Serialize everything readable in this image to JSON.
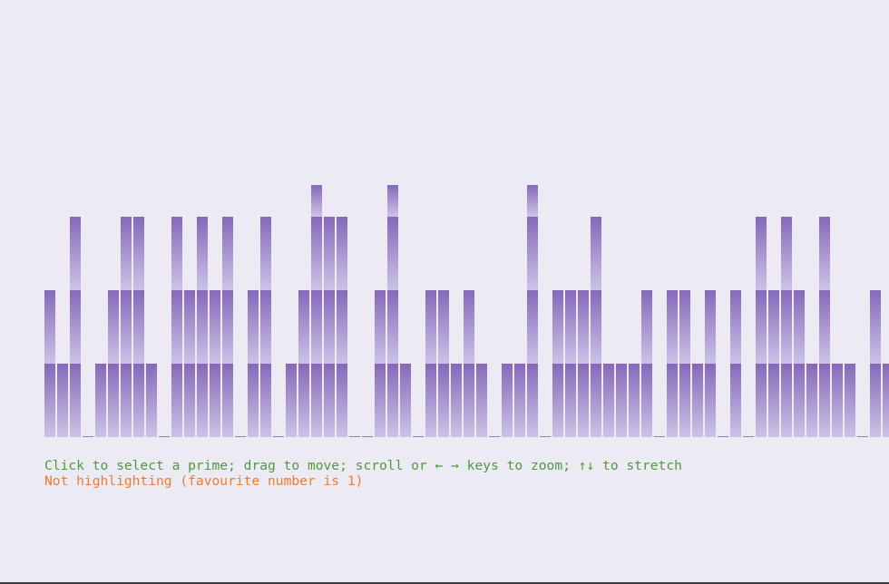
{
  "chart_data": {
    "type": "bar",
    "description_level_unit": "stacked segments per integer (1 segment ≈ prime factor level)",
    "levels": [
      2,
      1,
      3,
      0,
      1,
      2,
      3,
      3,
      1,
      0,
      3,
      2,
      3,
      2,
      3,
      0,
      2,
      3,
      0,
      1,
      2,
      4,
      3,
      3,
      0,
      0,
      2,
      4,
      1,
      0,
      2,
      2,
      1,
      2,
      1,
      0,
      1,
      1,
      4,
      0,
      2,
      2,
      2,
      3,
      1,
      1,
      1,
      2,
      0,
      2,
      2,
      1,
      2,
      0,
      2,
      0,
      3,
      2,
      3,
      2,
      1,
      3,
      1,
      1,
      0,
      2,
      1,
      2
    ],
    "segment_pattern": [
      1,
      1,
      1,
      2,
      1,
      3,
      2
    ],
    "colors": {
      "bar_top": "#8669bb",
      "bar_bottom": "#cdc2e6",
      "zero_marker": "#8f7bbf",
      "background": "#ecebf4"
    }
  },
  "status": {
    "instructions": "Click to select a prime; drag to move; scroll or ← → keys to zoom; ↑↓ to stretch",
    "highlight": "Not highlighting (favourite number is 1)",
    "instructions_color": "#4d9a3c",
    "highlight_color": "#ef7b2f"
  }
}
